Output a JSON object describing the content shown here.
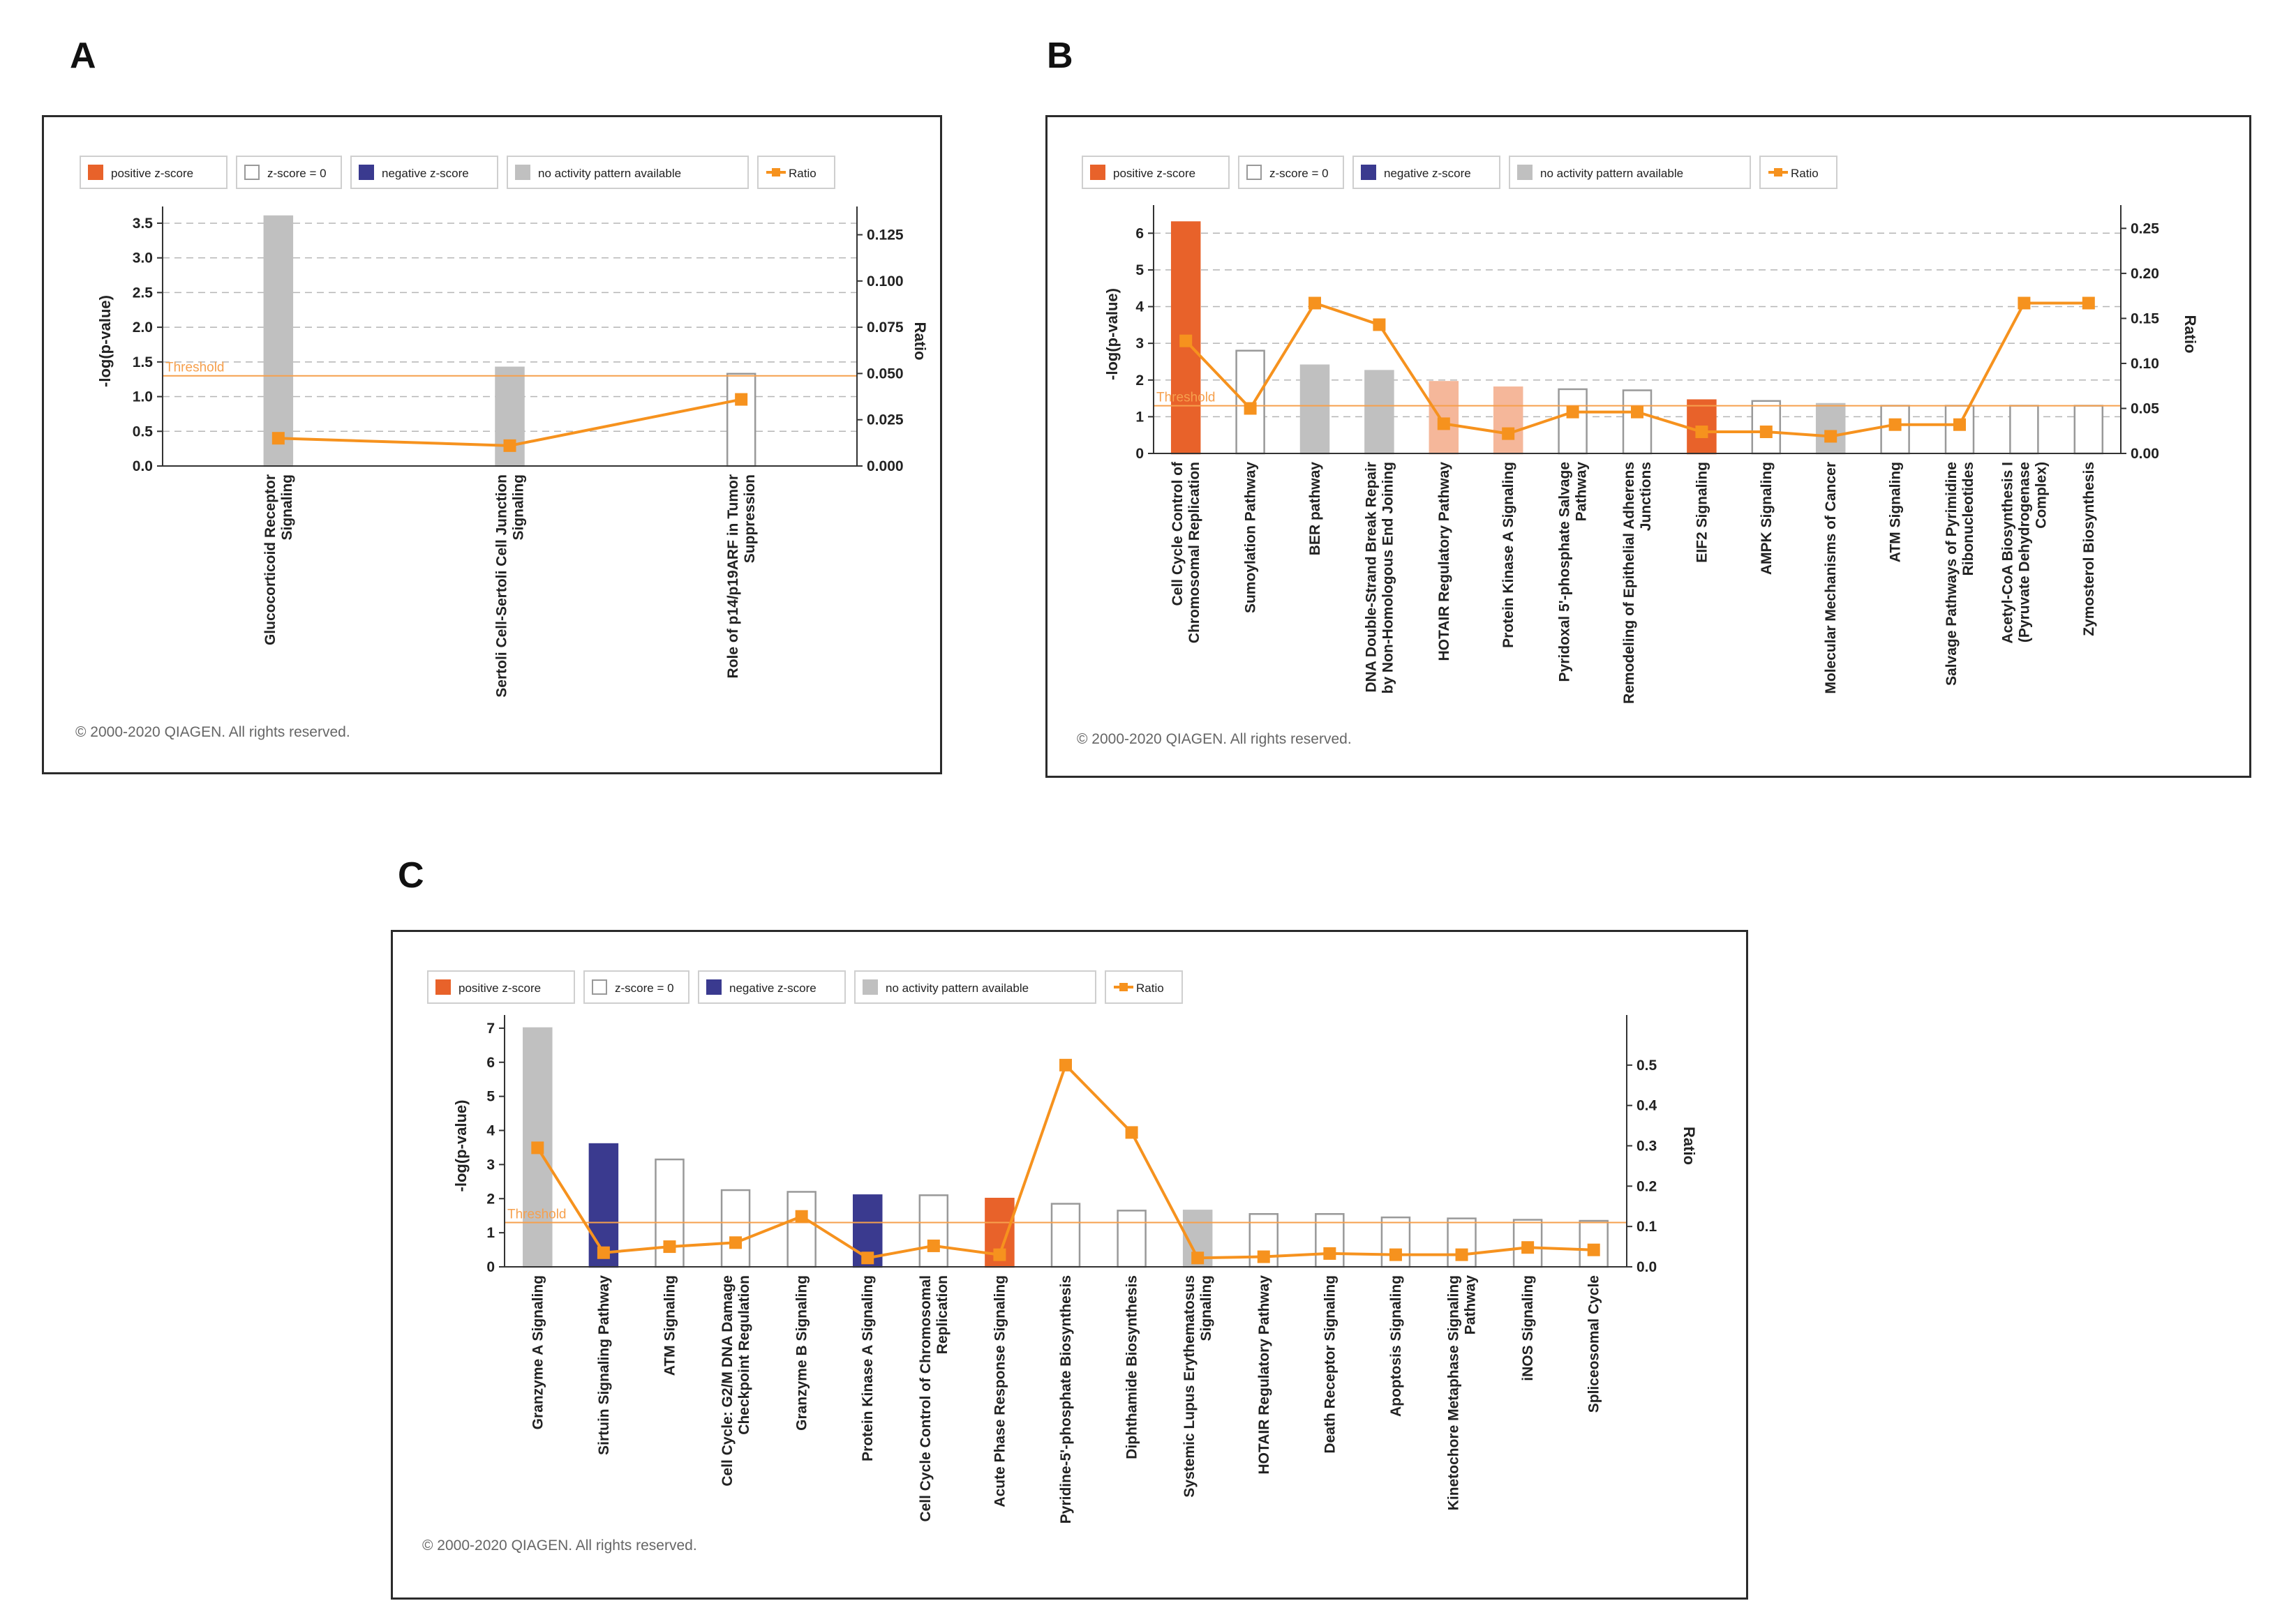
{
  "panels": [
    {
      "letter": "A",
      "copyright": "© 2000-2020 QIAGEN. All rights reserved."
    },
    {
      "letter": "B",
      "copyright": "© 2000-2020 QIAGEN. All rights reserved."
    },
    {
      "letter": "C",
      "copyright": "© 2000-2020 QIAGEN. All rights reserved."
    }
  ],
  "colors": {
    "positive": "#e8622a",
    "positive_light": "#f5b79a",
    "negative": "#3a3a8f",
    "na": "#c0c0c0",
    "zero_edge": "#999999",
    "ratio": "#f6921e",
    "threshold": "#f6a04d"
  },
  "legend": [
    {
      "key": "positive",
      "label": "positive z-score"
    },
    {
      "key": "zero",
      "label": "z-score = 0"
    },
    {
      "key": "negative",
      "label": "negative z-score"
    },
    {
      "key": "na",
      "label": "no activity pattern available"
    },
    {
      "key": "ratio",
      "label": "Ratio"
    }
  ],
  "chart_data": [
    {
      "type": "bar",
      "panel": "A",
      "ylabel": "-log(p-value)",
      "y2label": "Ratio",
      "threshold_label": "Threshold",
      "threshold": 1.3,
      "ylim": [
        0,
        3.6
      ],
      "y2lim": [
        0,
        0.135
      ],
      "yticks": [
        "0.0",
        "0.5",
        "1.0",
        "1.5",
        "2.0",
        "2.5",
        "3.0",
        "3.5"
      ],
      "y2ticks": [
        "0.000",
        "0.025",
        "0.050",
        "0.075",
        "0.100",
        "0.125"
      ],
      "grid": true,
      "categories": [
        [
          "Glucocorticoid Receptor",
          "Signaling"
        ],
        [
          "Sertoli Cell-Sertoli Cell Junction",
          "Signaling"
        ],
        [
          "Role of p14/p19ARF in Tumor",
          "Suppression"
        ]
      ],
      "series": [
        {
          "name": "-log(p-value)",
          "values": [
            3.6,
            1.42,
            1.33
          ],
          "zscore": [
            "na",
            "na",
            "zero"
          ]
        },
        {
          "name": "Ratio",
          "values": [
            0.015,
            0.011,
            0.036
          ]
        }
      ]
    },
    {
      "type": "bar",
      "panel": "B",
      "ylabel": "-log(p-value)",
      "y2label": "Ratio",
      "threshold_label": "Threshold",
      "threshold": 1.3,
      "ylim": [
        0,
        6.5
      ],
      "y2lim": [
        0,
        0.265
      ],
      "yticks": [
        "0",
        "1",
        "2",
        "3",
        "4",
        "5",
        "6"
      ],
      "y2ticks": [
        "0.00",
        "0.05",
        "0.10",
        "0.15",
        "0.20",
        "0.25"
      ],
      "grid": true,
      "categories": [
        [
          "Cell Cycle Control of",
          "Chromosomal Replication"
        ],
        [
          "Sumoylation Pathway"
        ],
        [
          "BER pathway"
        ],
        [
          "DNA Double-Strand Break Repair",
          "by Non-Homologous End Joining"
        ],
        [
          "HOTAIR Regulatory Pathway"
        ],
        [
          "Protein Kinase A Signaling"
        ],
        [
          "Pyridoxal 5'-phosphate Salvage",
          "Pathway"
        ],
        [
          "Remodeling of Epithelial Adherens",
          "Junctions"
        ],
        [
          "EIF2 Signaling"
        ],
        [
          "AMPK Signaling"
        ],
        [
          "Molecular Mechanisms of Cancer"
        ],
        [
          "ATM Signaling"
        ],
        [
          "Salvage Pathways of Pyrimidine",
          "Ribonucleotides"
        ],
        [
          "Acetyl-CoA Biosynthesis I",
          "(Pyruvate Dehydrogenase",
          "Complex)"
        ],
        [
          "Zymosterol Biosynthesis"
        ]
      ],
      "series": [
        {
          "name": "-log(p-value)",
          "values": [
            6.3,
            2.8,
            2.4,
            2.25,
            1.95,
            1.8,
            1.75,
            1.72,
            1.45,
            1.43,
            1.35,
            1.3,
            1.3,
            1.3,
            1.3
          ],
          "zscore": [
            "positive",
            "zero",
            "na",
            "na",
            "positive_light",
            "positive_light",
            "zero",
            "zero",
            "positive",
            "zero",
            "na",
            "zero",
            "zero",
            "zero",
            "zero"
          ]
        },
        {
          "name": "Ratio",
          "values": [
            0.125,
            0.05,
            0.167,
            0.143,
            0.033,
            0.022,
            0.046,
            0.046,
            0.024,
            0.024,
            0.019,
            0.032,
            0.032,
            0.167,
            0.167
          ]
        }
      ]
    },
    {
      "type": "bar",
      "panel": "C",
      "ylabel": "-log(p-value)",
      "y2label": "Ratio",
      "threshold_label": "Threshold",
      "threshold": 1.3,
      "ylim": [
        0,
        7.1
      ],
      "y2lim": [
        0,
        0.6
      ],
      "yticks": [
        "0",
        "1",
        "2",
        "3",
        "4",
        "5",
        "6",
        "7"
      ],
      "y2ticks": [
        "0.0",
        "0.1",
        "0.2",
        "0.3",
        "0.4",
        "0.5"
      ],
      "grid": false,
      "categories": [
        [
          "Granzyme A Signaling"
        ],
        [
          "Sirtuin Signaling Pathway"
        ],
        [
          "ATM Signaling"
        ],
        [
          "Cell Cycle: G2/M DNA Damage",
          "Checkpoint Regulation"
        ],
        [
          "Granzyme B Signaling"
        ],
        [
          "Protein Kinase A Signaling"
        ],
        [
          "Cell Cycle Control of Chromosomal",
          "Replication"
        ],
        [
          "Acute Phase Response Signaling"
        ],
        [
          "Pyridine-5'-phosphate Biosynthesis"
        ],
        [
          "Diphthamide Biosynthesis"
        ],
        [
          "Systemic Lupus Erythematosus",
          "Signaling"
        ],
        [
          "HOTAIR Regulatory Pathway"
        ],
        [
          "Death Receptor Signaling"
        ],
        [
          "Apoptosis Signaling"
        ],
        [
          "Kinetochore Metaphase Signaling",
          "Pathway"
        ],
        [
          "iNOS Signaling"
        ],
        [
          "Spliceosomal Cycle"
        ]
      ],
      "series": [
        {
          "name": "-log(p-value)",
          "values": [
            7.0,
            3.6,
            3.15,
            2.25,
            2.2,
            2.1,
            2.1,
            2.0,
            1.85,
            1.65,
            1.65,
            1.55,
            1.55,
            1.45,
            1.42,
            1.38,
            1.35
          ],
          "zscore": [
            "na",
            "negative",
            "zero",
            "zero",
            "zero",
            "negative",
            "zero",
            "positive",
            "zero",
            "zero",
            "na",
            "zero",
            "zero",
            "zero",
            "zero",
            "zero",
            "zero"
          ]
        },
        {
          "name": "Ratio",
          "values": [
            0.295,
            0.035,
            0.05,
            0.06,
            0.125,
            0.022,
            0.052,
            0.03,
            0.5,
            0.333,
            0.022,
            0.025,
            0.033,
            0.03,
            0.03,
            0.048,
            0.042
          ]
        }
      ]
    }
  ]
}
